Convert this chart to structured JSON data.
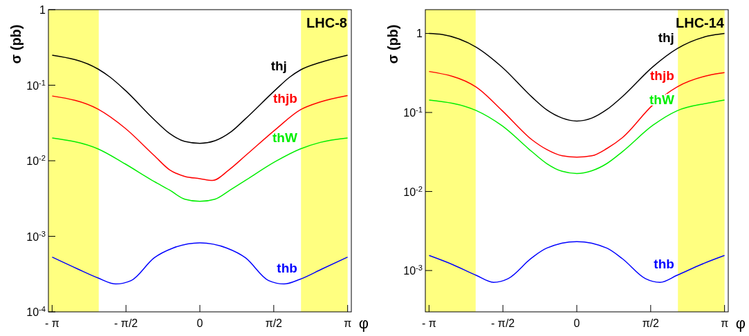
{
  "chart_data": [
    {
      "type": "line",
      "log": "y",
      "xlabel": "φ",
      "ylabel": "σ (pb)",
      "annotations": [
        "LHC-8"
      ],
      "xlim": [
        -3.22,
        3.22
      ],
      "ylim": [
        0.0001,
        1
      ],
      "xticks": [
        {
          "value": -3.1416,
          "label": "- π"
        },
        {
          "value": -1.5708,
          "label": "- π/2"
        },
        0,
        {
          "value": 1.5708,
          "label": "π/2"
        },
        {
          "value": 3.1416,
          "label": "π"
        }
      ],
      "yticks": [
        {
          "value": 0.0001,
          "label": "10$^{-4}$"
        },
        {
          "value": 0.001,
          "label": "10$^{-3}$"
        },
        {
          "value": 0.01,
          "label": "10$^{-2}$"
        },
        {
          "value": 0.1,
          "label": "10$^{-1}$"
        },
        1
      ],
      "bands": [
        {
          "axis": "x",
          "from": -3.22,
          "to": -2.15,
          "color": "#ffff80"
        },
        {
          "axis": "x",
          "from": 2.15,
          "to": 3.1416,
          "color": "#ffff80"
        }
      ],
      "series": [
        {
          "name": "thj",
          "color": "#000000",
          "x": [
            -3.14,
            -2.16,
            -1.91,
            -1.59,
            -0.97,
            -0.645,
            -0.32,
            0,
            0.32,
            0.645,
            0.97,
            1.61,
            1.91,
            2.13,
            2.56,
            3.14
          ],
          "values": [
            0.25,
            0.163,
            0.128,
            0.086,
            0.035,
            0.023,
            0.018,
            0.017,
            0.0184,
            0.0237,
            0.036,
            0.087,
            0.128,
            0.158,
            0.2,
            0.25
          ]
        },
        {
          "name": "thjb",
          "color": "#ff0000",
          "x": [
            -3.14,
            -2.16,
            -1.59,
            -0.97,
            -0.645,
            -0.32,
            0,
            0.27,
            0.62,
            0.97,
            1.61,
            2.13,
            2.56,
            3.14
          ],
          "values": [
            0.072,
            0.048,
            0.027,
            0.0117,
            0.0076,
            0.0062,
            0.0058,
            0.0055,
            0.0076,
            0.0117,
            0.026,
            0.047,
            0.06,
            0.073
          ]
        },
        {
          "name": "thW",
          "color": "#00ee00",
          "x": [
            -3.14,
            -2.16,
            -1.59,
            -0.97,
            -0.645,
            -0.32,
            0,
            0.32,
            0.645,
            0.97,
            1.61,
            2.13,
            2.56,
            3.14
          ],
          "values": [
            0.02,
            0.0143,
            0.0091,
            0.0053,
            0.0041,
            0.0031,
            0.0029,
            0.0031,
            0.0041,
            0.0055,
            0.0098,
            0.0143,
            0.0175,
            0.02
          ]
        },
        {
          "name": "thb",
          "color": "#0000ff",
          "x": [
            -3.14,
            -2.6,
            -2.16,
            -1.79,
            -1.46,
            -0.97,
            -0.57,
            0,
            0.57,
            0.97,
            1.46,
            1.79,
            2.13,
            2.6,
            3.14
          ],
          "values": [
            0.00053,
            0.00037,
            0.00028,
            0.000234,
            0.00026,
            0.00052,
            0.0007,
            0.00082,
            0.0007,
            0.00052,
            0.00026,
            0.000234,
            0.00027,
            0.00037,
            0.00053
          ]
        }
      ]
    },
    {
      "type": "line",
      "log": "y",
      "xlabel": "φ",
      "ylabel": "σ (pb)",
      "annotations": [
        "LHC-14"
      ],
      "xlim": [
        -3.22,
        3.22
      ],
      "ylim": [
        0.0003,
        2
      ],
      "xticks": [
        {
          "value": -3.1416,
          "label": "- π"
        },
        {
          "value": -1.5708,
          "label": "- π/2"
        },
        0,
        {
          "value": 1.5708,
          "label": "π/2"
        },
        {
          "value": 3.1416,
          "label": "π"
        }
      ],
      "yticks": [
        {
          "value": 0.001,
          "label": "10$^{-3}$"
        },
        {
          "value": 0.01,
          "label": "10$^{-2}$"
        },
        {
          "value": 0.1,
          "label": "10$^{-1}$"
        },
        1
      ],
      "bands": [
        {
          "axis": "x",
          "from": -3.22,
          "to": -2.15,
          "color": "#ffff80"
        },
        {
          "axis": "x",
          "from": 2.15,
          "to": 3.1416,
          "color": "#ffff80"
        }
      ],
      "series": [
        {
          "name": "thj",
          "color": "#000000",
          "x": [
            -3.14,
            -2.86,
            -2.14,
            -1.59,
            -0.95,
            -0.64,
            -0.31,
            0,
            0.32,
            0.64,
            0.97,
            1.62,
            2.13,
            2.8,
            3.14
          ],
          "values": [
            1.0,
            0.97,
            0.67,
            0.375,
            0.156,
            0.108,
            0.085,
            0.078,
            0.085,
            0.109,
            0.159,
            0.38,
            0.64,
            0.93,
            1.0
          ]
        },
        {
          "name": "thjb",
          "color": "#ff0000",
          "x": [
            -3.14,
            -2.14,
            -1.59,
            -0.95,
            -0.64,
            -0.31,
            0,
            0.32,
            0.64,
            0.97,
            1.62,
            2.13,
            2.8,
            3.14
          ],
          "values": [
            0.33,
            0.21,
            0.106,
            0.045,
            0.034,
            0.0283,
            0.0272,
            0.0283,
            0.035,
            0.048,
            0.125,
            0.21,
            0.295,
            0.32
          ]
        },
        {
          "name": "thW",
          "color": "#00ee00",
          "x": [
            -3.14,
            -2.14,
            -1.59,
            -0.95,
            -0.64,
            -0.31,
            0,
            0.32,
            0.64,
            0.97,
            1.62,
            2.13,
            2.8,
            3.14
          ],
          "values": [
            0.144,
            0.106,
            0.068,
            0.0318,
            0.0226,
            0.018,
            0.0169,
            0.0183,
            0.0226,
            0.0319,
            0.069,
            0.105,
            0.132,
            0.144
          ]
        },
        {
          "name": "thb",
          "color": "#0000ff",
          "x": [
            -3.14,
            -2.64,
            -2.14,
            -1.77,
            -1.46,
            -0.95,
            -0.64,
            0,
            0.64,
            0.97,
            1.46,
            1.77,
            2.13,
            2.64,
            3.14
          ],
          "values": [
            0.00155,
            0.00119,
            0.00087,
            0.00071,
            0.00079,
            0.00146,
            0.00192,
            0.00232,
            0.00192,
            0.00141,
            0.00079,
            0.00071,
            0.00087,
            0.00119,
            0.00155
          ]
        }
      ]
    }
  ]
}
